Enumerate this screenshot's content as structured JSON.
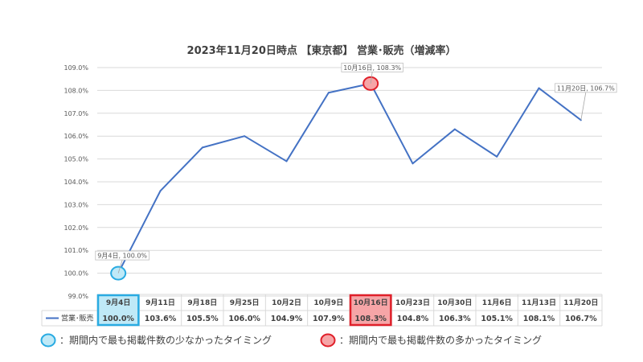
{
  "chart_data": {
    "type": "line",
    "title": "2023年11月20日時点 【東京都】 営業･販売（増減率）",
    "categories": [
      "9月4日",
      "9月11日",
      "9月18日",
      "9月25日",
      "10月2日",
      "10月9日",
      "10月16日",
      "10月23日",
      "10月30日",
      "11月6日",
      "11月13日",
      "11月20日"
    ],
    "series": [
      {
        "name": "営業･販売",
        "values": [
          100.0,
          103.6,
          105.5,
          106.0,
          104.9,
          107.9,
          108.3,
          104.8,
          106.3,
          105.1,
          108.1,
          106.7
        ],
        "labels": [
          "100.0%",
          "103.6%",
          "105.5%",
          "106.0%",
          "104.9%",
          "107.9%",
          "108.3%",
          "104.8%",
          "106.3%",
          "105.1%",
          "108.1%",
          "106.7%"
        ],
        "color": "#4472C4"
      }
    ],
    "ylim": [
      99.0,
      109.0
    ],
    "y_ticks": [
      "99.0%",
      "100.0%",
      "101.0%",
      "102.0%",
      "103.0%",
      "104.0%",
      "105.0%",
      "106.0%",
      "107.0%",
      "108.0%",
      "109.0%"
    ],
    "grid": true,
    "data_table": true,
    "annotations": [
      {
        "text": "9月4日, 100.0%",
        "category_index": 0
      },
      {
        "text": "10月16日, 108.3%",
        "category_index": 6
      },
      {
        "text": "11月20日, 106.7%",
        "category_index": 11
      }
    ],
    "highlights": {
      "min_index": 0,
      "min_color": "#29ABE2",
      "min_fill": "#BFE9F7",
      "max_index": 6,
      "max_color": "#E0202A",
      "max_fill": "#F6A5A7"
    }
  },
  "legend": {
    "min_label": "：期間内で最も掲載件数の少なかったタイミング",
    "max_label": "：期間内で最も掲載件数の多かったタイミング"
  }
}
